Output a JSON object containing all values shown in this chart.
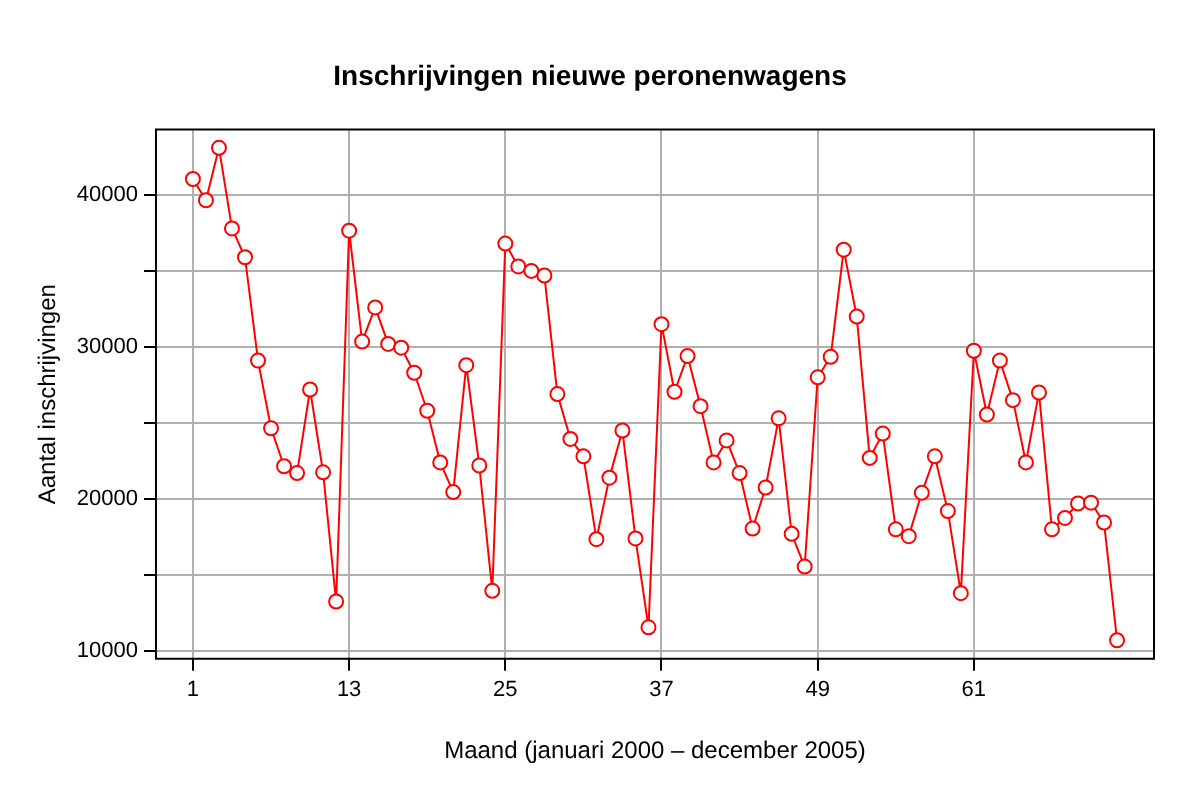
{
  "chart_data": {
    "type": "line",
    "title": "Inschrijvingen nieuwe peronenwagens",
    "xlabel": "Maand (januari 2000 – december 2005)",
    "ylabel": "Aantal inschrijvingen",
    "x": [
      1,
      2,
      3,
      4,
      5,
      6,
      7,
      8,
      9,
      10,
      11,
      12,
      13,
      14,
      15,
      16,
      17,
      18,
      19,
      20,
      21,
      22,
      23,
      24,
      25,
      26,
      27,
      28,
      29,
      30,
      31,
      32,
      33,
      34,
      35,
      36,
      37,
      38,
      39,
      40,
      41,
      42,
      43,
      44,
      45,
      46,
      47,
      48,
      49,
      50,
      51,
      52,
      53,
      54,
      55,
      56,
      57,
      58,
      59,
      60,
      61,
      62,
      63,
      64,
      65,
      66,
      67,
      68,
      69,
      70,
      71,
      72
    ],
    "series": [
      {
        "color": "#ff0000",
        "values": [
          41050,
          39650,
          43100,
          37800,
          35900,
          29100,
          24650,
          22150,
          21700,
          27200,
          21750,
          13250,
          37650,
          30350,
          32600,
          30200,
          29950,
          28300,
          25800,
          22400,
          20450,
          28800,
          22200,
          13950,
          36800,
          35300,
          35000,
          34700,
          26900,
          23950,
          22800,
          17350,
          21400,
          24500,
          17400,
          11550,
          31500,
          27050,
          29400,
          26100,
          22400,
          23850,
          21700,
          18050,
          20750,
          25300,
          17700,
          15550,
          28000,
          29350,
          36400,
          32000,
          22700,
          24300,
          18000,
          17550,
          20400,
          22800,
          19200,
          13800,
          29750,
          25550,
          29100,
          26500,
          22400,
          27000,
          18000,
          18750,
          19700,
          19750,
          18450,
          10700
        ]
      }
    ],
    "xlim": [
      -1.84,
      74.84
    ],
    "xticks": [
      1,
      13,
      25,
      37,
      49,
      61
    ],
    "ylim": [
      9480,
      44300
    ],
    "yticks": [
      10000,
      {
        "value": 15000,
        "label": null
      },
      20000,
      {
        "value": 25000,
        "label": null
      },
      30000,
      {
        "value": 35000,
        "label": null
      },
      40000
    ],
    "grid": true,
    "marker": "circle",
    "line_style": "solid",
    "legend": false
  }
}
